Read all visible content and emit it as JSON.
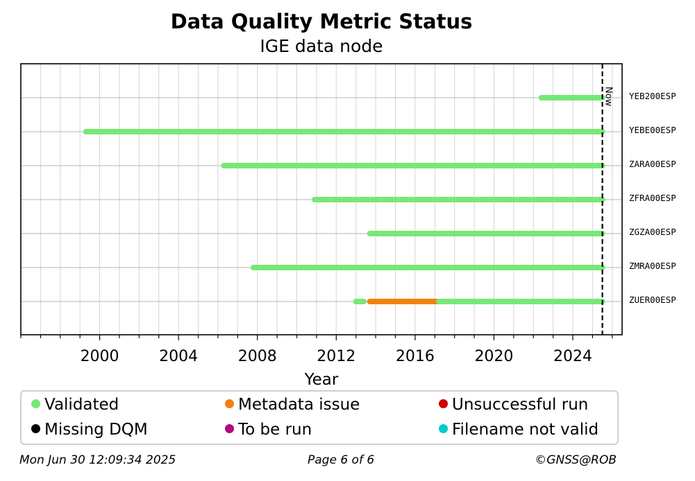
{
  "chart_data": {
    "type": "timeline",
    "title": "Data Quality Metric Status",
    "subtitle": "IGE data node",
    "xlabel": "Year",
    "xlim": [
      1996,
      2026.5
    ],
    "xticks": [
      2000,
      2004,
      2008,
      2012,
      2016,
      2020,
      2024
    ],
    "now_value": 2025.5,
    "now_label": "Now",
    "stations": [
      "YEB200ESP",
      "YEBE00ESP",
      "ZARA00ESP",
      "ZFRA00ESP",
      "ZGZA00ESP",
      "ZMRA00ESP",
      "ZUER00ESP"
    ],
    "segments": [
      {
        "station": "YEB200ESP",
        "start": 2022.4,
        "end": 2025.5,
        "status": "Validated"
      },
      {
        "station": "YEBE00ESP",
        "start": 1999.3,
        "end": 2025.5,
        "status": "Validated"
      },
      {
        "station": "ZARA00ESP",
        "start": 2006.3,
        "end": 2025.5,
        "status": "Validated"
      },
      {
        "station": "ZFRA00ESP",
        "start": 2010.9,
        "end": 2025.5,
        "status": "Validated"
      },
      {
        "station": "ZGZA00ESP",
        "start": 2013.7,
        "end": 2025.5,
        "status": "Validated"
      },
      {
        "station": "ZMRA00ESP",
        "start": 2007.8,
        "end": 2025.5,
        "status": "Validated"
      },
      {
        "station": "ZUER00ESP",
        "start": 2013.0,
        "end": 2013.4,
        "status": "Validated"
      },
      {
        "station": "ZUER00ESP",
        "start": 2013.7,
        "end": 2017.2,
        "status": "Metadata issue"
      },
      {
        "station": "ZUER00ESP",
        "start": 2017.2,
        "end": 2025.5,
        "status": "Validated"
      }
    ],
    "legend": [
      {
        "label": "Validated",
        "color": "#77e877"
      },
      {
        "label": "Metadata issue",
        "color": "#f57f0e"
      },
      {
        "label": "Unsuccessful run",
        "color": "#cc0000"
      },
      {
        "label": "Missing DQM",
        "color": "#000000"
      },
      {
        "label": "To be run",
        "color": "#b5047e"
      },
      {
        "label": "Filename not valid",
        "color": "#00cccc"
      }
    ]
  },
  "footer": {
    "timestamp": "Mon Jun 30 12:09:34 2025",
    "page": "Page 6 of 6",
    "copyright": "©GNSS@ROB"
  }
}
